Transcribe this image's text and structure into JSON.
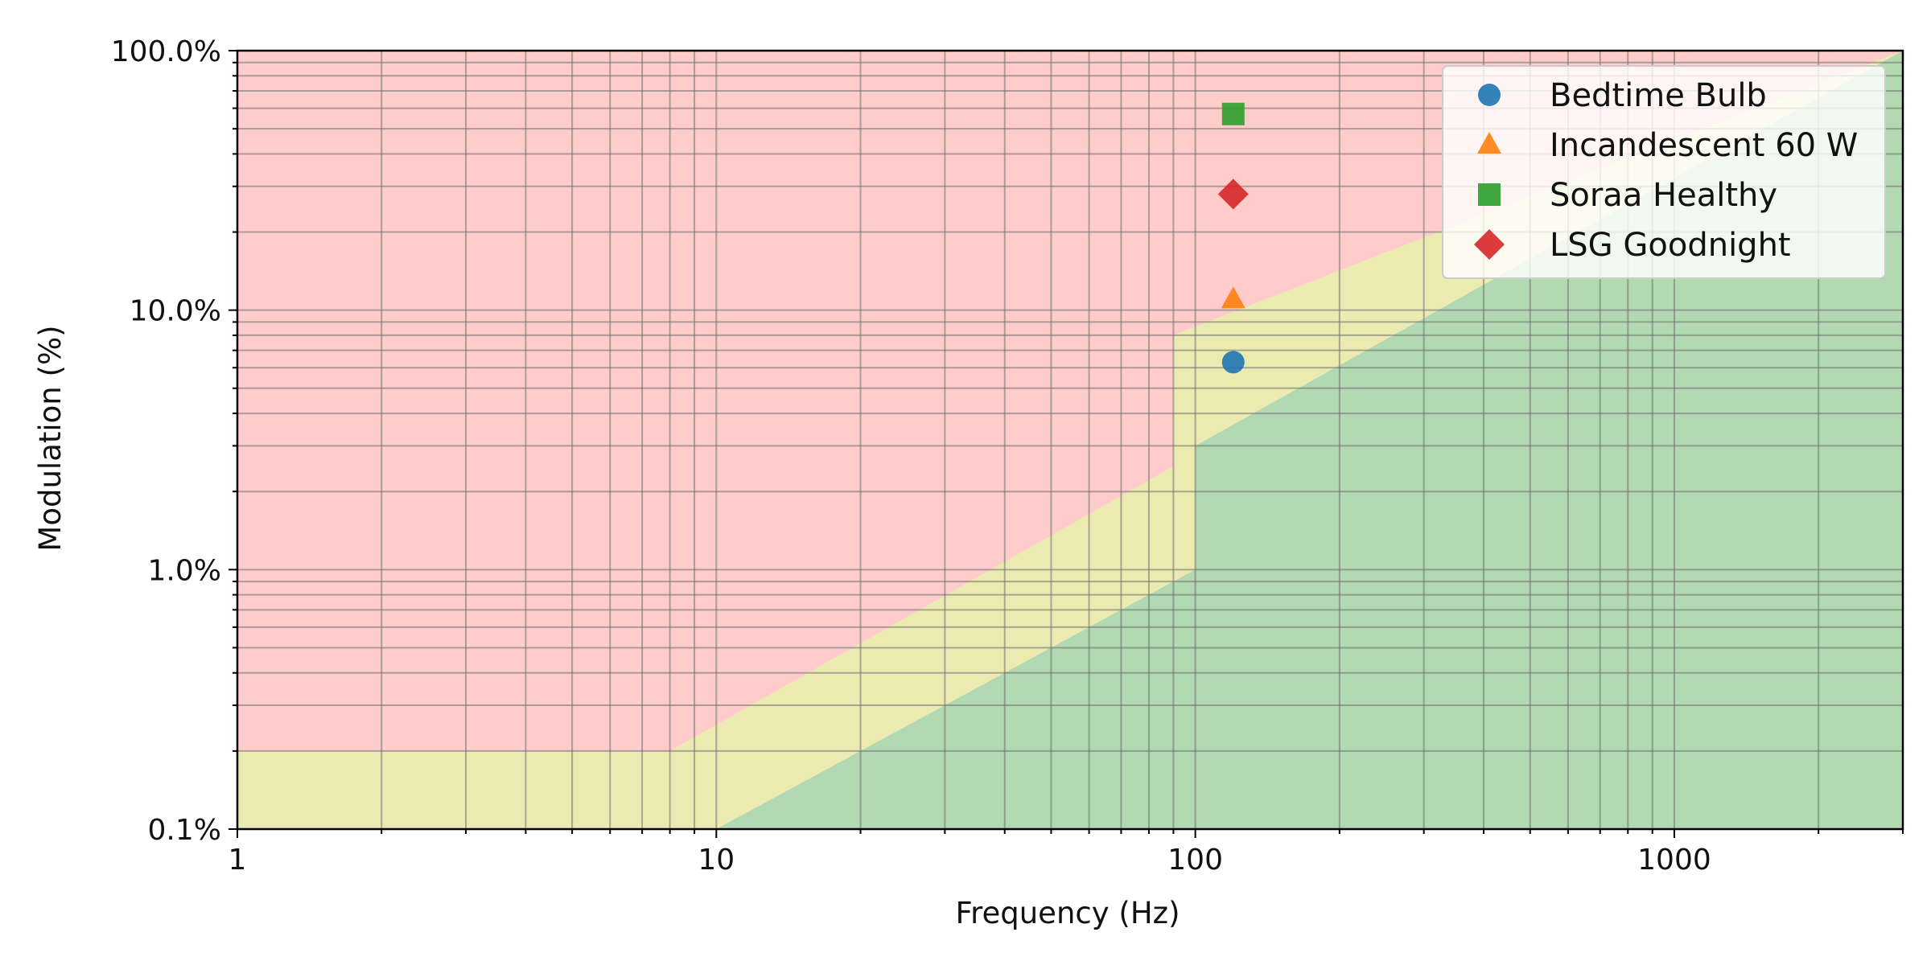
{
  "chart_data": {
    "type": "scatter",
    "title": "",
    "xlabel": "Frequency (Hz)",
    "ylabel": "Modulation (%)",
    "xscale": "log",
    "yscale": "log",
    "xlim": [
      1,
      3000
    ],
    "ylim": [
      0.1,
      100
    ],
    "x_ticks": [
      1,
      10,
      100,
      1000
    ],
    "x_tick_labels": [
      "1",
      "10",
      "100",
      "1000"
    ],
    "y_ticks": [
      0.1,
      1,
      10,
      100
    ],
    "y_tick_labels": [
      "0.1%",
      "1.0%",
      "10.0%",
      "100.0%"
    ],
    "grid": "major and minor",
    "legend_position": "top-right",
    "regions": [
      {
        "color": "#ffcccc",
        "boundary_above_yellow": [
          [
            1,
            0.2
          ],
          [
            8,
            0.2
          ],
          [
            90,
            2.5
          ],
          [
            90,
            8
          ],
          [
            3000,
            100
          ]
        ]
      },
      {
        "color": "#ebebb1",
        "boundary_above_green": [
          [
            10,
            0.1
          ],
          [
            100,
            1
          ],
          [
            100,
            3
          ],
          [
            3000,
            100
          ]
        ]
      },
      {
        "color": "#b2d9b2"
      }
    ],
    "series": [
      {
        "name": "Bedtime Bulb",
        "marker": "circle",
        "color": "#1f77b4",
        "x": [
          120
        ],
        "y": [
          6.3
        ]
      },
      {
        "name": "Incandescent 60 W",
        "marker": "triangle",
        "color": "#ff7f0e",
        "x": [
          120
        ],
        "y": [
          11
        ]
      },
      {
        "name": "Soraa Healthy",
        "marker": "square",
        "color": "#2ca02c",
        "x": [
          120
        ],
        "y": [
          57
        ]
      },
      {
        "name": "LSG Goodnight",
        "marker": "diamond",
        "color": "#d62728",
        "x": [
          120
        ],
        "y": [
          28
        ]
      }
    ]
  }
}
